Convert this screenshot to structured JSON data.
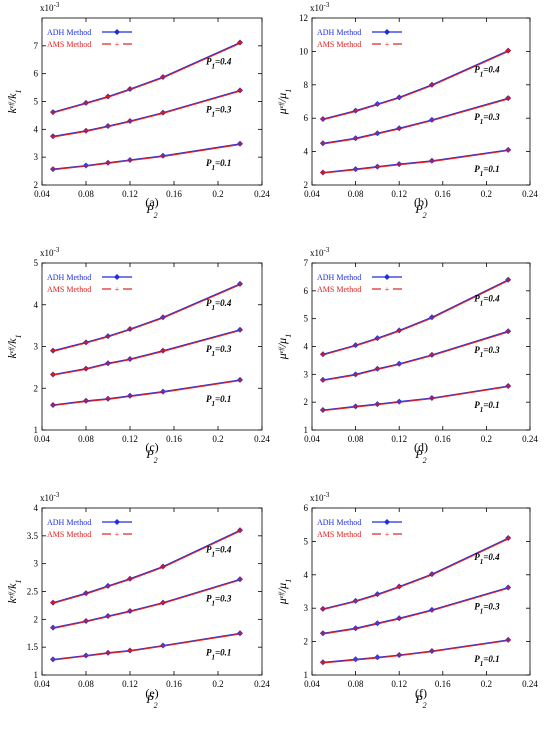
{
  "chart_data": [
    {
      "type": "line",
      "panel_label": "(a)",
      "exponent": "x10",
      "exponent_power": "-3",
      "ylabel_main": "k",
      "ylabel_sup": "eff",
      "ylabel_sep": "/",
      "ylabel_den": "k",
      "ylabel_den_sub": "1",
      "xlabel_main": "P",
      "xlabel_sub": "2",
      "xlim": [
        0.04,
        0.24
      ],
      "xticks": [
        "0.04",
        "0.08",
        "0.12",
        "0.16",
        "0.2",
        "0.24"
      ],
      "ylim": [
        2,
        8
      ],
      "yticks": [
        "2",
        "3",
        "4",
        "5",
        "6",
        "7"
      ],
      "legend": [
        "ADH Method",
        "AMS Method"
      ],
      "legend_position": "top-left",
      "x": [
        0.05,
        0.08,
        0.1,
        0.12,
        0.15,
        0.22
      ],
      "groups": [
        {
          "label_main": "P",
          "label_sub": "1",
          "label_val": "=0.4",
          "values": [
            4.62,
            4.95,
            5.18,
            5.45,
            5.88,
            7.12
          ]
        },
        {
          "label_main": "P",
          "label_sub": "1",
          "label_val": "=0.3",
          "values": [
            3.75,
            3.95,
            4.12,
            4.3,
            4.6,
            5.4
          ]
        },
        {
          "label_main": "P",
          "label_sub": "1",
          "label_val": "=0.1",
          "values": [
            2.57,
            2.7,
            2.8,
            2.9,
            3.05,
            3.48
          ]
        }
      ]
    },
    {
      "type": "line",
      "panel_label": "(b)",
      "exponent": "x10",
      "exponent_power": "-3",
      "ylabel_main": "μ",
      "ylabel_sup": "eff",
      "ylabel_sep": "/",
      "ylabel_den": "μ",
      "ylabel_den_sub": "1",
      "xlabel_main": "P",
      "xlabel_sub": "2",
      "xlim": [
        0.04,
        0.24
      ],
      "xticks": [
        "0.04",
        "0.08",
        "0.12",
        "0.16",
        "0.2",
        "0.24"
      ],
      "ylim": [
        2,
        12
      ],
      "yticks": [
        "2",
        "4",
        "6",
        "8",
        "10",
        "12"
      ],
      "legend": [
        "ADH Method",
        "AMS Method"
      ],
      "legend_position": "top-left",
      "x": [
        0.05,
        0.08,
        0.1,
        0.12,
        0.15,
        0.22
      ],
      "groups": [
        {
          "label_main": "P",
          "label_sub": "1",
          "label_val": "=0.4",
          "values": [
            5.95,
            6.45,
            6.85,
            7.25,
            8.0,
            10.05
          ]
        },
        {
          "label_main": "P",
          "label_sub": "1",
          "label_val": "=0.3",
          "values": [
            4.5,
            4.8,
            5.1,
            5.4,
            5.9,
            7.2
          ]
        },
        {
          "label_main": "P",
          "label_sub": "1",
          "label_val": "=0.1",
          "values": [
            2.75,
            2.95,
            3.1,
            3.25,
            3.45,
            4.1
          ]
        }
      ]
    },
    {
      "type": "line",
      "panel_label": "(c)",
      "exponent": "x10",
      "exponent_power": "-3",
      "ylabel_main": "k",
      "ylabel_sup": "eff",
      "ylabel_sep": "/",
      "ylabel_den": "k",
      "ylabel_den_sub": "1",
      "xlabel_main": "P",
      "xlabel_sub": "2",
      "xlim": [
        0.04,
        0.24
      ],
      "xticks": [
        "0.04",
        "0.08",
        "0.12",
        "0.16",
        "0.2",
        "0.24"
      ],
      "ylim": [
        1,
        5
      ],
      "yticks": [
        "1",
        "2",
        "3",
        "4",
        "5"
      ],
      "legend": [
        "ADH Method",
        "AMS Method"
      ],
      "legend_position": "top-left",
      "x": [
        0.05,
        0.08,
        0.1,
        0.12,
        0.15,
        0.22
      ],
      "groups": [
        {
          "label_main": "P",
          "label_sub": "1",
          "label_val": "=0.4",
          "values": [
            2.9,
            3.1,
            3.25,
            3.42,
            3.7,
            4.5
          ]
        },
        {
          "label_main": "P",
          "label_sub": "1",
          "label_val": "=0.3",
          "values": [
            2.33,
            2.47,
            2.6,
            2.7,
            2.9,
            3.4
          ]
        },
        {
          "label_main": "P",
          "label_sub": "1",
          "label_val": "=0.1",
          "values": [
            1.6,
            1.7,
            1.75,
            1.82,
            1.92,
            2.2
          ]
        }
      ]
    },
    {
      "type": "line",
      "panel_label": "(d)",
      "exponent": "x10",
      "exponent_power": "-3",
      "ylabel_main": "μ",
      "ylabel_sup": "eff",
      "ylabel_sep": "/",
      "ylabel_den": "μ",
      "ylabel_den_sub": "1",
      "xlabel_main": "P",
      "xlabel_sub": "2",
      "xlim": [
        0.04,
        0.24
      ],
      "xticks": [
        "0.04",
        "0.08",
        "0.12",
        "0.16",
        "0.2",
        "0.24"
      ],
      "ylim": [
        1,
        7
      ],
      "yticks": [
        "1",
        "2",
        "3",
        "4",
        "5",
        "6",
        "7"
      ],
      "legend": [
        "ADH Method",
        "AMS Method"
      ],
      "legend_position": "top-left",
      "x": [
        0.05,
        0.08,
        0.1,
        0.12,
        0.15,
        0.22
      ],
      "groups": [
        {
          "label_main": "P",
          "label_sub": "1",
          "label_val": "=0.4",
          "values": [
            3.72,
            4.05,
            4.3,
            4.58,
            5.05,
            6.4
          ]
        },
        {
          "label_main": "P",
          "label_sub": "1",
          "label_val": "=0.3",
          "values": [
            2.8,
            3.0,
            3.2,
            3.38,
            3.7,
            4.55
          ]
        },
        {
          "label_main": "P",
          "label_sub": "1",
          "label_val": "=0.1",
          "values": [
            1.72,
            1.85,
            1.93,
            2.02,
            2.15,
            2.58
          ]
        }
      ]
    },
    {
      "type": "line",
      "panel_label": "(e)",
      "exponent": "x10",
      "exponent_power": "-3",
      "ylabel_main": "k",
      "ylabel_sup": "eff",
      "ylabel_sep": "/",
      "ylabel_den": "k",
      "ylabel_den_sub": "1",
      "xlabel_main": "P",
      "xlabel_sub": "2",
      "xlim": [
        0.04,
        0.24
      ],
      "xticks": [
        "0.04",
        "0.08",
        "0.12",
        "0.16",
        "0.2",
        "0.24"
      ],
      "ylim": [
        1,
        4
      ],
      "yticks": [
        "1",
        "1.5",
        "2",
        "2.5",
        "3",
        "3.5",
        "4"
      ],
      "legend": [
        "ADH Method",
        "AMS Method"
      ],
      "legend_position": "top-left",
      "x": [
        0.05,
        0.08,
        0.1,
        0.12,
        0.15,
        0.22
      ],
      "groups": [
        {
          "label_main": "P",
          "label_sub": "1",
          "label_val": "=0.4",
          "values": [
            2.3,
            2.47,
            2.6,
            2.73,
            2.95,
            3.6
          ]
        },
        {
          "label_main": "P",
          "label_sub": "1",
          "label_val": "=0.3",
          "values": [
            1.85,
            1.97,
            2.06,
            2.15,
            2.3,
            2.72
          ]
        },
        {
          "label_main": "P",
          "label_sub": "1",
          "label_val": "=0.1",
          "values": [
            1.28,
            1.35,
            1.4,
            1.44,
            1.53,
            1.75
          ]
        }
      ]
    },
    {
      "type": "line",
      "panel_label": "(f)",
      "exponent": "x10",
      "exponent_power": "-3",
      "ylabel_main": "μ",
      "ylabel_sup": "eff",
      "ylabel_sep": "/",
      "ylabel_den": "μ",
      "ylabel_den_sub": "1",
      "xlabel_main": "P",
      "xlabel_sub": "2",
      "xlim": [
        0.04,
        0.24
      ],
      "xticks": [
        "0.04",
        "0.08",
        "0.12",
        "0.16",
        "0.2",
        "0.24"
      ],
      "ylim": [
        1,
        6
      ],
      "yticks": [
        "1",
        "2",
        "3",
        "4",
        "5",
        "6"
      ],
      "legend": [
        "ADH Method",
        "AMS Method"
      ],
      "legend_position": "top-left",
      "x": [
        0.05,
        0.08,
        0.1,
        0.12,
        0.15,
        0.22
      ],
      "groups": [
        {
          "label_main": "P",
          "label_sub": "1",
          "label_val": "=0.4",
          "values": [
            2.98,
            3.22,
            3.42,
            3.65,
            4.02,
            5.1
          ]
        },
        {
          "label_main": "P",
          "label_sub": "1",
          "label_val": "=0.3",
          "values": [
            2.25,
            2.4,
            2.55,
            2.7,
            2.95,
            3.62
          ]
        },
        {
          "label_main": "P",
          "label_sub": "1",
          "label_val": "=0.1",
          "values": [
            1.38,
            1.47,
            1.53,
            1.6,
            1.72,
            2.05
          ]
        }
      ]
    }
  ],
  "colors": {
    "adh": "#1f2fe0",
    "ams": "#e01f1f",
    "axis": "#000000"
  }
}
